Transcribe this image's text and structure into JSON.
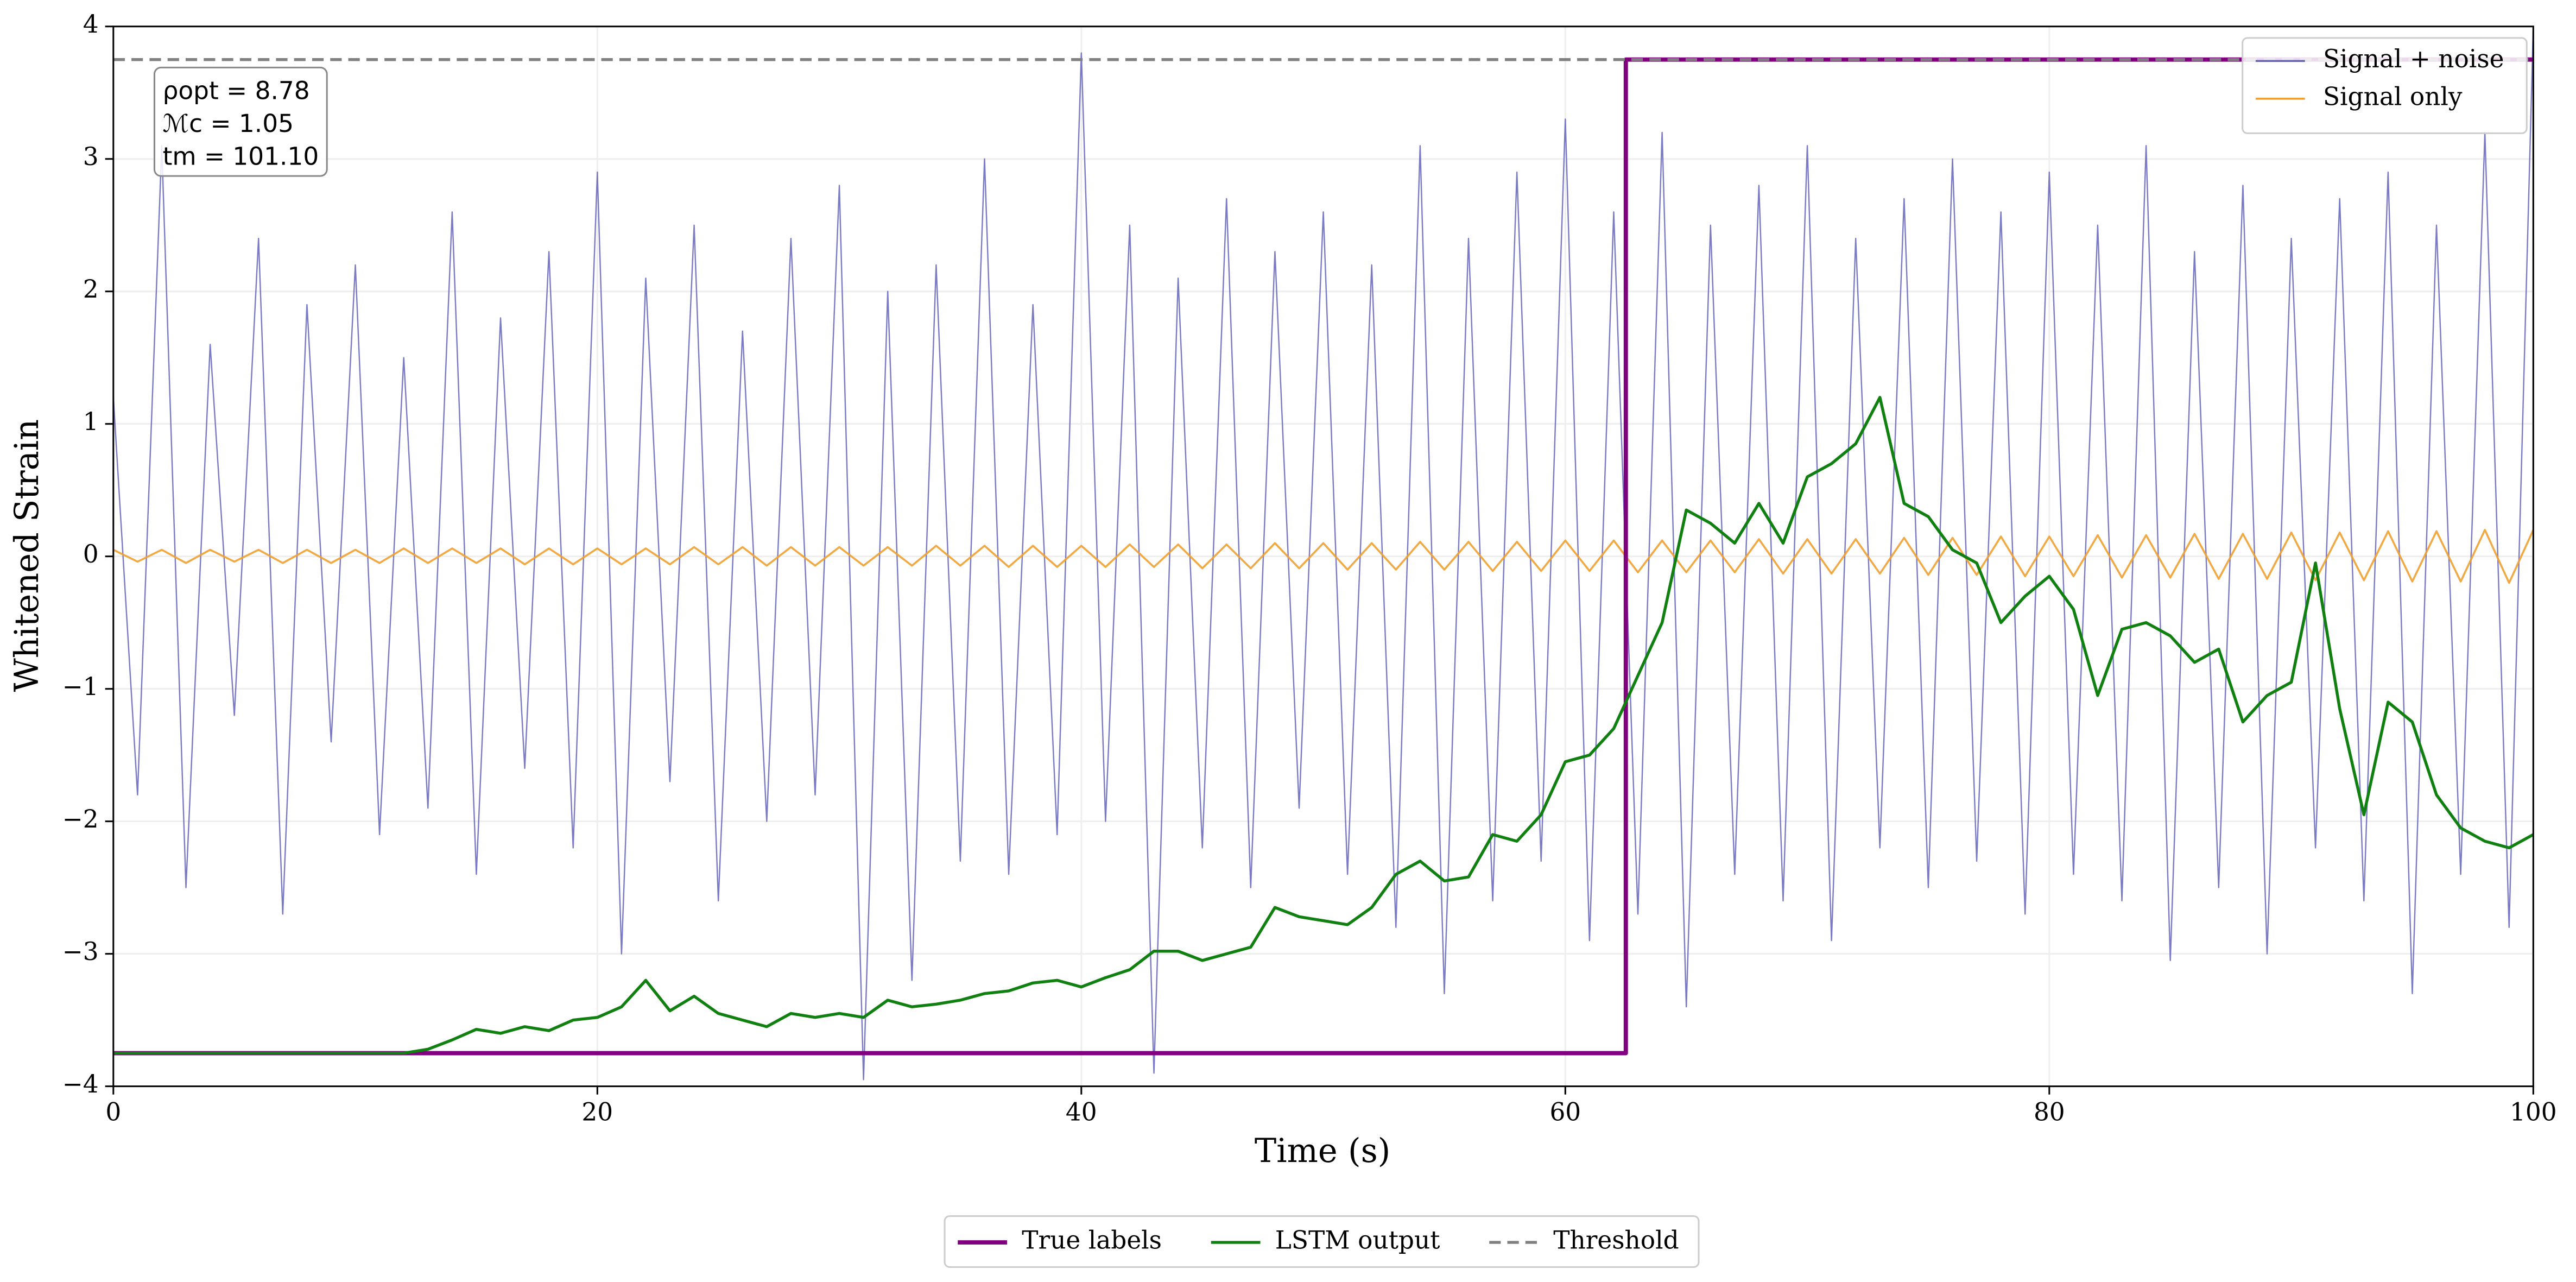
{
  "chart_data": {
    "type": "line",
    "xlabel": "Time (s)",
    "ylabel": "Whitened Strain",
    "xlim": [
      0,
      100
    ],
    "ylim": [
      -4,
      4
    ],
    "xticks": [
      0,
      20,
      40,
      60,
      80,
      100
    ],
    "yticks": [
      {
        "value": -4,
        "label": "−4"
      },
      {
        "value": -3,
        "label": "−3"
      },
      {
        "value": -2,
        "label": "−2"
      },
      {
        "value": -1,
        "label": "−1"
      },
      0,
      1,
      2,
      3,
      4
    ],
    "grid": true,
    "annotations": [
      "ρopt = 8.78",
      "ℳc = 1.05",
      "tm = 101.10"
    ],
    "series": [
      {
        "name": "Signal + noise",
        "color": "#6464bb",
        "legend": "upper right",
        "x": [
          0,
          1,
          2,
          3,
          4,
          5,
          6,
          7,
          8,
          9,
          10,
          11,
          12,
          13,
          14,
          15,
          16,
          17,
          18,
          19,
          20,
          21,
          22,
          23,
          24,
          25,
          26,
          27,
          28,
          29,
          30,
          31,
          32,
          33,
          34,
          35,
          36,
          37,
          38,
          39,
          40,
          41,
          42,
          43,
          44,
          45,
          46,
          47,
          48,
          49,
          50,
          51,
          52,
          53,
          54,
          55,
          56,
          57,
          58,
          59,
          60,
          61,
          62,
          63,
          64,
          65,
          66,
          67,
          68,
          69,
          70,
          71,
          72,
          73,
          74,
          75,
          76,
          77,
          78,
          79,
          80,
          81,
          82,
          83,
          84,
          85,
          86,
          87,
          88,
          89,
          90,
          91,
          92,
          93,
          94,
          95,
          96,
          97,
          98,
          99,
          100
        ],
        "values": [
          1.2,
          -1.8,
          3.1,
          -2.5,
          1.6,
          -1.2,
          2.4,
          -2.7,
          1.9,
          -1.4,
          2.2,
          -2.1,
          1.5,
          -1.9,
          2.6,
          -2.4,
          1.8,
          -1.6,
          2.3,
          -2.2,
          2.9,
          -3.0,
          2.1,
          -1.7,
          2.5,
          -2.6,
          1.7,
          -2.0,
          2.4,
          -1.8,
          2.8,
          -3.95,
          2.0,
          -3.2,
          2.2,
          -2.3,
          3.0,
          -2.4,
          1.9,
          -2.1,
          3.8,
          -2.0,
          2.5,
          -3.9,
          2.1,
          -2.2,
          2.7,
          -2.5,
          2.3,
          -1.9,
          2.6,
          -2.4,
          2.2,
          -2.8,
          3.1,
          -3.3,
          2.4,
          -2.6,
          2.9,
          -2.3,
          3.3,
          -2.9,
          2.6,
          -2.7,
          3.2,
          -3.4,
          2.5,
          -2.4,
          2.8,
          -2.6,
          3.1,
          -2.9,
          2.4,
          -2.2,
          2.7,
          -2.5,
          3.0,
          -2.3,
          2.6,
          -2.7,
          2.9,
          -2.4,
          2.5,
          -2.6,
          3.1,
          -3.05,
          2.3,
          -2.5,
          2.8,
          -3.0,
          2.4,
          -2.2,
          2.7,
          -2.6,
          2.9,
          -3.3,
          2.5,
          -2.4,
          3.2,
          -2.8,
          4.0
        ]
      },
      {
        "name": "Signal only",
        "color": "#f0a030",
        "legend": "upper right",
        "x": [
          0,
          1,
          2,
          3,
          4,
          5,
          6,
          7,
          8,
          9,
          10,
          11,
          12,
          13,
          14,
          15,
          16,
          17,
          18,
          19,
          20,
          21,
          22,
          23,
          24,
          25,
          26,
          27,
          28,
          29,
          30,
          31,
          32,
          33,
          34,
          35,
          36,
          37,
          38,
          39,
          40,
          41,
          42,
          43,
          44,
          45,
          46,
          47,
          48,
          49,
          50,
          51,
          52,
          53,
          54,
          55,
          56,
          57,
          58,
          59,
          60,
          61,
          62,
          63,
          64,
          65,
          66,
          67,
          68,
          69,
          70,
          71,
          72,
          73,
          74,
          75,
          76,
          77,
          78,
          79,
          80,
          81,
          82,
          83,
          84,
          85,
          86,
          87,
          88,
          89,
          90,
          91,
          92,
          93,
          94,
          95,
          96,
          97,
          98,
          99,
          100
        ],
        "values": [
          0.05,
          -0.04,
          0.05,
          -0.05,
          0.05,
          -0.04,
          0.05,
          -0.05,
          0.05,
          -0.05,
          0.05,
          -0.05,
          0.06,
          -0.05,
          0.06,
          -0.05,
          0.06,
          -0.06,
          0.06,
          -0.06,
          0.06,
          -0.06,
          0.06,
          -0.06,
          0.07,
          -0.06,
          0.07,
          -0.07,
          0.07,
          -0.07,
          0.07,
          -0.07,
          0.07,
          -0.07,
          0.08,
          -0.07,
          0.08,
          -0.08,
          0.08,
          -0.08,
          0.08,
          -0.08,
          0.09,
          -0.08,
          0.09,
          -0.09,
          0.09,
          -0.09,
          0.1,
          -0.09,
          0.1,
          -0.1,
          0.1,
          -0.1,
          0.11,
          -0.1,
          0.11,
          -0.11,
          0.11,
          -0.11,
          0.12,
          -0.11,
          0.12,
          -0.12,
          0.12,
          -0.12,
          0.12,
          -0.12,
          0.13,
          -0.13,
          0.13,
          -0.13,
          0.13,
          -0.13,
          0.14,
          -0.14,
          0.14,
          -0.14,
          0.15,
          -0.15,
          0.15,
          -0.15,
          0.16,
          -0.16,
          0.16,
          -0.16,
          0.17,
          -0.17,
          0.17,
          -0.17,
          0.18,
          -0.18,
          0.18,
          -0.18,
          0.19,
          -0.19,
          0.19,
          -0.19,
          0.2,
          -0.2,
          0.2
        ]
      },
      {
        "name": "True labels",
        "color": "#800080",
        "legend": "lower center",
        "x": [
          0,
          62.5,
          62.5,
          100
        ],
        "values": [
          -3.75,
          -3.75,
          3.75,
          3.75
        ]
      },
      {
        "name": "LSTM output",
        "color": "#108010",
        "legend": "lower center",
        "x": [
          0,
          1,
          2,
          3,
          4,
          5,
          6,
          7,
          8,
          9,
          10,
          11,
          12,
          13,
          14,
          15,
          16,
          17,
          18,
          19,
          20,
          21,
          22,
          23,
          24,
          25,
          26,
          27,
          28,
          29,
          30,
          31,
          32,
          33,
          34,
          35,
          36,
          37,
          38,
          39,
          40,
          41,
          42,
          43,
          44,
          45,
          46,
          47,
          48,
          49,
          50,
          51,
          52,
          53,
          54,
          55,
          56,
          57,
          58,
          59,
          60,
          61,
          62,
          63,
          64,
          65,
          66,
          67,
          68,
          69,
          70,
          71,
          72,
          73,
          74,
          75,
          76,
          77,
          78,
          79,
          80,
          81,
          82,
          83,
          84,
          85,
          86,
          87,
          88,
          89,
          90,
          91,
          92,
          93,
          94,
          95,
          96,
          97,
          98,
          99,
          100
        ],
        "values": [
          -3.75,
          -3.75,
          -3.75,
          -3.75,
          -3.75,
          -3.75,
          -3.75,
          -3.75,
          -3.75,
          -3.75,
          -3.75,
          -3.75,
          -3.75,
          -3.72,
          -3.65,
          -3.57,
          -3.6,
          -3.55,
          -3.58,
          -3.5,
          -3.48,
          -3.4,
          -3.2,
          -3.43,
          -3.32,
          -3.45,
          -3.5,
          -3.55,
          -3.45,
          -3.48,
          -3.45,
          -3.48,
          -3.35,
          -3.4,
          -3.38,
          -3.35,
          -3.3,
          -3.28,
          -3.22,
          -3.2,
          -3.25,
          -3.18,
          -3.12,
          -2.98,
          -2.98,
          -3.05,
          -3.0,
          -2.95,
          -2.65,
          -2.72,
          -2.75,
          -2.78,
          -2.65,
          -2.4,
          -2.3,
          -2.45,
          -2.42,
          -2.1,
          -2.15,
          -1.95,
          -1.55,
          -1.5,
          -1.3,
          -0.9,
          -0.5,
          0.35,
          0.25,
          0.1,
          0.4,
          0.1,
          0.6,
          0.7,
          0.85,
          1.2,
          0.4,
          0.3,
          0.05,
          -0.05,
          -0.5,
          -0.3,
          -0.15,
          -0.4,
          -1.05,
          -0.55,
          -0.5,
          -0.6,
          -0.8,
          -0.7,
          -1.25,
          -1.05,
          -0.95,
          -0.05,
          -1.15,
          -1.95,
          -1.1,
          -1.25,
          -1.8,
          -2.05,
          -2.15,
          -2.2,
          -2.1
        ]
      },
      {
        "name": "Threshold",
        "color": "#808080",
        "dashed": true,
        "legend": "lower center",
        "x": [
          0,
          100
        ],
        "values": [
          3.75,
          3.75
        ]
      }
    ]
  }
}
